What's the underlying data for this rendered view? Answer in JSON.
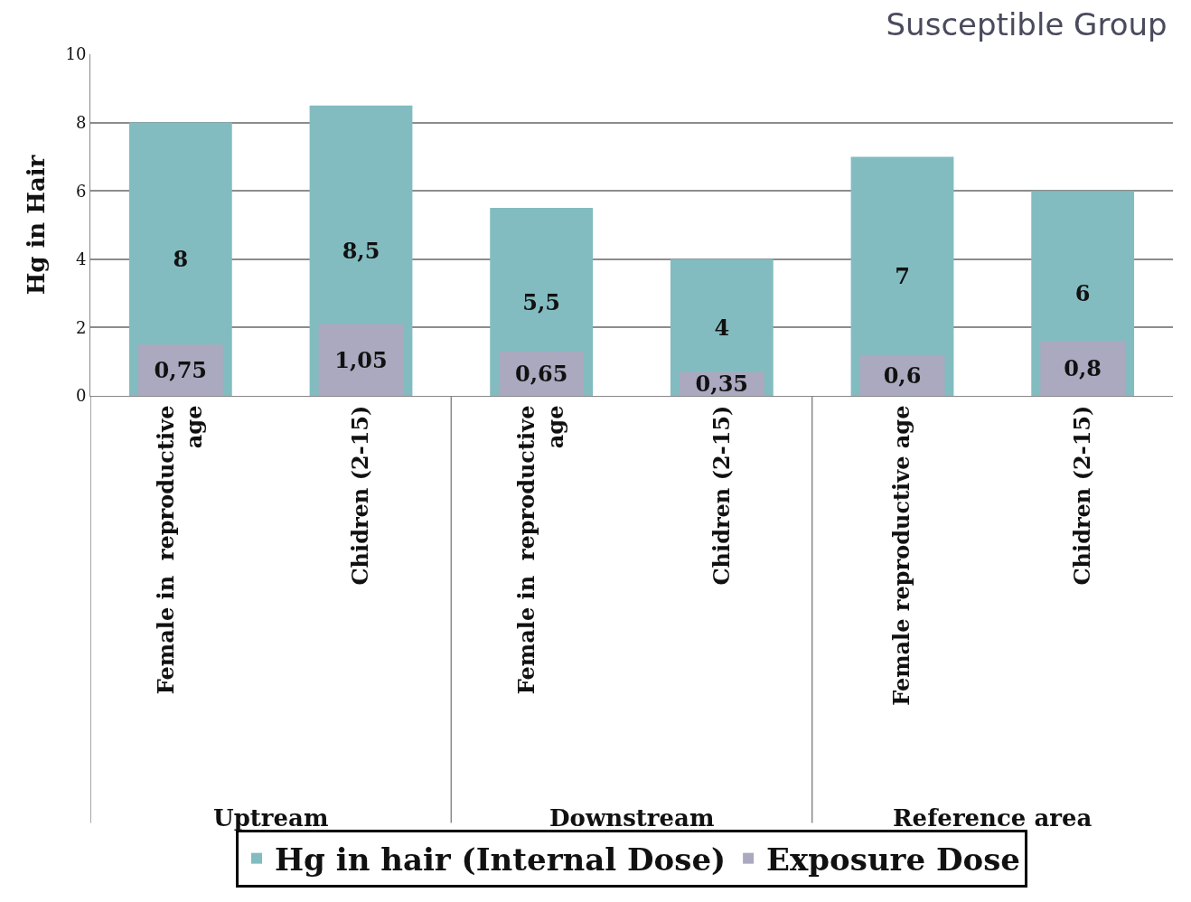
{
  "chart_data": {
    "type": "bar",
    "title": "Susceptible Group",
    "ylabel": "Hg in Hair",
    "categories": [
      "Female in  reproductive\nage",
      "Chidren (2-15)",
      "Female in  reproductive\nage",
      "Chidren (2-15)",
      "Female reproductive age",
      "Chidren (2-15)"
    ],
    "series": [
      {
        "name": "Hg in hair (Internal Dose)",
        "color": "#82bcc0",
        "values": [
          8,
          8.5,
          5.5,
          4,
          7,
          6
        ],
        "value_labels": [
          "8",
          "8,5",
          "5,5",
          "4",
          "7",
          "6"
        ]
      },
      {
        "name": "Exposure Dose",
        "color": "#aaa9bf",
        "axis": "y2",
        "values": [
          0.75,
          1.05,
          0.65,
          0.35,
          0.6,
          0.8
        ],
        "value_labels": [
          "0,75",
          "1,05",
          "0,65",
          "0,35",
          "0,6",
          "0,8"
        ]
      }
    ],
    "annotations": [
      "Uptream",
      "Downstream",
      "Reference area"
    ],
    "ylim": [
      0,
      10
    ],
    "yticks": [
      0,
      2,
      4,
      6,
      8,
      10
    ],
    "y2lim": [
      0,
      5
    ],
    "grid": "y",
    "legend": "bottom"
  }
}
